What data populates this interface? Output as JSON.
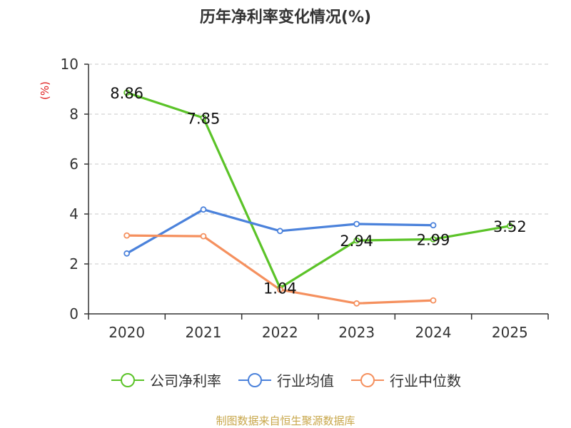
{
  "title": "历年净利率变化情况(%)",
  "source": "制图数据来自恒生聚源数据库",
  "chart_data": {
    "type": "line",
    "title": "历年净利率变化情况(%)",
    "ylabel": "(%)",
    "xlabel": "",
    "categories": [
      "2020",
      "2021",
      "2022",
      "2023",
      "2024",
      "2025"
    ],
    "ylim": [
      0,
      10
    ],
    "yticks": [
      0,
      2,
      4,
      6,
      8,
      10
    ],
    "grid": true,
    "legend_position": "bottom",
    "series": [
      {
        "name": "公司净利率",
        "color": "#5bc328",
        "values": [
          8.86,
          7.85,
          1.04,
          2.94,
          2.99,
          3.52
        ],
        "labels": [
          "8.86",
          "7.85",
          "1.04",
          "2.94",
          "2.99",
          "3.52"
        ]
      },
      {
        "name": "行业均值",
        "color": "#4b82db",
        "values": [
          2.42,
          4.18,
          3.32,
          3.6,
          3.55,
          null
        ]
      },
      {
        "name": "行业中位数",
        "color": "#f5905e",
        "values": [
          3.14,
          3.11,
          0.97,
          0.42,
          0.54,
          null
        ]
      }
    ]
  }
}
